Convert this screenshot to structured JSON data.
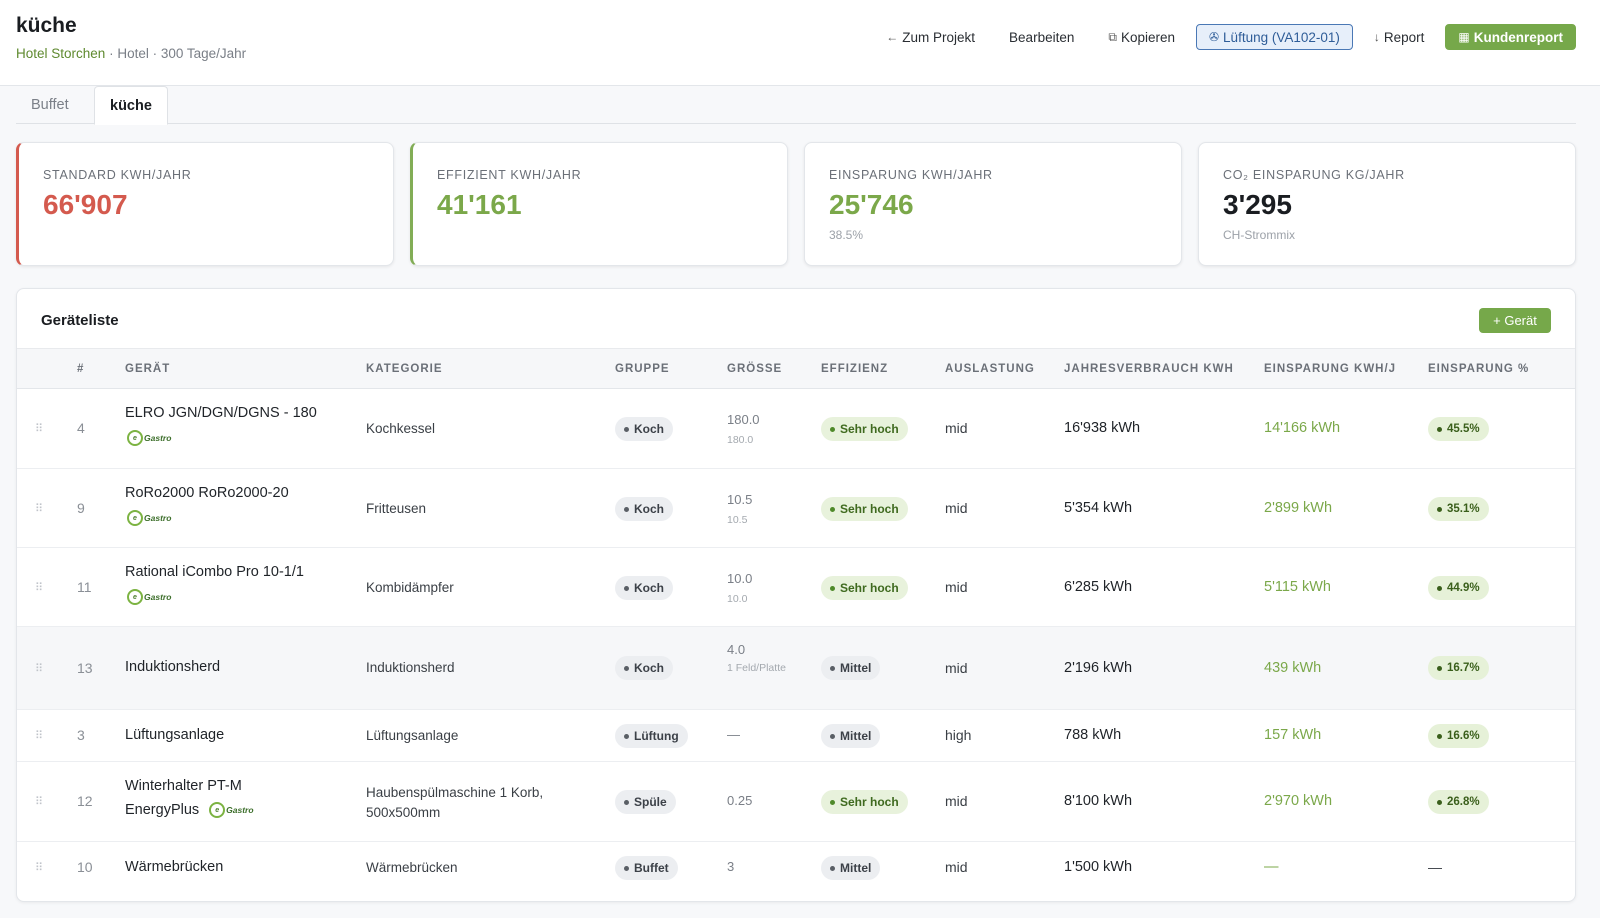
{
  "header": {
    "title": "küche",
    "project": "Hotel Storchen",
    "meta": "· Hotel · 300 Tage/Jahr"
  },
  "actions": {
    "back": "Zum Projekt",
    "edit": "Bearbeiten",
    "copy": "Kopieren",
    "ventilation": "Lüftung (VA102-01)",
    "report": "Report",
    "customer_report": "Kundenreport"
  },
  "tabs": [
    {
      "label": "Buffet",
      "active": false
    },
    {
      "label": "küche",
      "active": true
    }
  ],
  "stats": [
    {
      "label": "Standard kWh/Jahr",
      "value": "66'907",
      "sub": "",
      "color": "#d45a4e"
    },
    {
      "label": "Effizient kWh/Jahr",
      "value": "41'161",
      "sub": "",
      "color": "#7ba84a"
    },
    {
      "label": "Einsparung kWh/Jahr",
      "value": "25'746",
      "sub": "38.5%",
      "color": "#7ba84a"
    },
    {
      "label": "CO₂ Einsparung kg/Jahr",
      "value": "3'295",
      "sub": "CH-Strommix",
      "color": "#1a1d21"
    }
  ],
  "device_list": {
    "title": "Geräteliste",
    "add_label": "+ Gerät",
    "columns": [
      "#",
      "Gerät",
      "Kategorie",
      "Gruppe",
      "Grösse",
      "Effizienz",
      "Auslastung",
      "Jahresverbrauch kWh",
      "Einsparung kWh/J",
      "Einsparung %"
    ],
    "rows": [
      {
        "num": "4",
        "name": "ELRO JGN/DGN/DGNS - 180",
        "logo": true,
        "category": "Kochkessel",
        "group": "Koch",
        "size": "180.0",
        "size_sub": "180.0",
        "efficiency": "Sehr hoch",
        "load": "mid",
        "consumption": "16'938 kWh",
        "saving": "14'166 kWh",
        "pct": "45.5%"
      },
      {
        "num": "9",
        "name": "RoRo2000 RoRo2000-20",
        "logo": true,
        "category": "Fritteusen",
        "group": "Koch",
        "size": "10.5",
        "size_sub": "10.5",
        "efficiency": "Sehr hoch",
        "load": "mid",
        "consumption": "5'354 kWh",
        "saving": "2'899 kWh",
        "pct": "35.1%"
      },
      {
        "num": "11",
        "name": "Rational iCombo Pro 10-1/1",
        "logo": true,
        "category": "Kombidämpfer",
        "group": "Koch",
        "size": "10.0",
        "size_sub": "10.0",
        "efficiency": "Sehr hoch",
        "load": "mid",
        "consumption": "6'285 kWh",
        "saving": "5'115 kWh",
        "pct": "44.9%"
      },
      {
        "num": "13",
        "name": "Induktionsherd",
        "logo": false,
        "category": "Induktionsherd",
        "group": "Koch",
        "size": "4.0",
        "size_sub": "1 Feld/Platte",
        "efficiency": "Mittel",
        "load": "mid",
        "consumption": "2'196 kWh",
        "saving": "439 kWh",
        "pct": "16.7%"
      },
      {
        "num": "3",
        "name": "Lüftungsanlage",
        "logo": false,
        "category": "Lüftungsanlage",
        "group": "Lüftung",
        "size": "—",
        "size_sub": "",
        "efficiency": "Mittel",
        "load": "high",
        "consumption": "788 kWh",
        "saving": "157 kWh",
        "pct": "16.6%"
      },
      {
        "num": "12",
        "name": "Winterhalter PT-M",
        "name2": "EnergyPlus",
        "logo": true,
        "category": "Haubenspülmaschine 1 Korb,",
        "category2": "500x500mm",
        "group": "Spüle",
        "size": "0.25",
        "size_sub": "",
        "efficiency": "Sehr hoch",
        "load": "mid",
        "consumption": "8'100 kWh",
        "saving": "2'970 kWh",
        "pct": "26.8%"
      },
      {
        "num": "10",
        "name": "Wärmebrücken",
        "logo": false,
        "category": "Wärmebrücken",
        "group": "Buffet",
        "size": "3",
        "size_sub": "",
        "efficiency": "Mittel",
        "load": "mid",
        "consumption": "1'500 kWh",
        "saving": "—",
        "pct": "—"
      }
    ]
  },
  "colors": {
    "accent_green": "#76a84a",
    "standard_red": "#d45a4e",
    "outline_blue": "#4a78b5"
  }
}
